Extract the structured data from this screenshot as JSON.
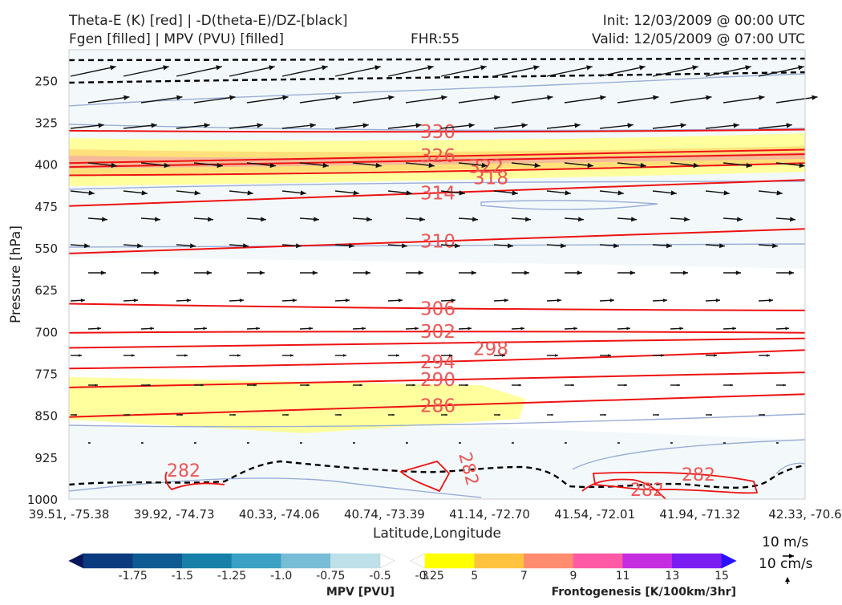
{
  "header": {
    "left_line1": "Theta-E (K) [red] | -D(theta-E)/DZ-[black]",
    "left_line2": "Fgen [filled] | MPV (PVU) [filled]",
    "center": "FHR:55",
    "init": "Init: 12/03/2009 @ 00:00 UTC",
    "valid": "Valid: 12/05/2009 @ 07:00 UTC"
  },
  "chart_data": {
    "type": "cross-section",
    "xlabel": "Latitude,Longitude",
    "ylabel": "Pressure [hPa]",
    "ylim": [
      1000,
      195
    ],
    "y_ticks": [
      250,
      325,
      400,
      475,
      550,
      625,
      700,
      775,
      850,
      925,
      1000
    ],
    "x_ticks": [
      "39.51, -75.38",
      "39.92, -74.73",
      "40.33, -74.06",
      "40.74, -73.39",
      "41.14, -72.70",
      "41.54, -72.01",
      "41.94, -71.32",
      "42.33, -70.6"
    ],
    "theta_e": {
      "color": "#ee1111",
      "levels": [
        {
          "value": 330,
          "label": "330",
          "p_left": 340,
          "p_right": 338
        },
        {
          "value": 326,
          "label": "326",
          "p_left": 398,
          "p_right": 374
        },
        {
          "value": 322,
          "label": "322",
          "p_left": 405,
          "p_right": 382
        },
        {
          "value": 318,
          "label": "318",
          "p_left": 420,
          "p_right": 398
        },
        {
          "value": 314,
          "label": "314",
          "p_left": 475,
          "p_right": 428
        },
        {
          "value": 310,
          "label": "310",
          "p_left": 560,
          "p_right": 516
        },
        {
          "value": 306,
          "label": "306",
          "p_left": 650,
          "p_right": 662
        },
        {
          "value": 302,
          "label": "302",
          "p_left": 702,
          "p_right": 702
        },
        {
          "value": 298,
          "label": "298",
          "p_left": 729,
          "p_right": 712
        },
        {
          "value": 294,
          "label": "294",
          "p_left": 766,
          "p_right": 733
        },
        {
          "value": 290,
          "label": "290",
          "p_left": 800,
          "p_right": 773
        },
        {
          "value": 286,
          "label": "286",
          "p_left": 853,
          "p_right": 812
        }
      ],
      "low_labels": [
        "282",
        "282",
        "282",
        "282"
      ]
    },
    "fgen_colorbar": {
      "label": "Frontogenesis [K/100km/3hr]",
      "ticks": [
        "3",
        "5",
        "7",
        "9",
        "11",
        "13",
        "15"
      ],
      "colors": [
        "#ffffff",
        "#ffff00",
        "#ffc340",
        "#ff8c6e",
        "#ff5aa6",
        "#c42ee0",
        "#7a1cf2",
        "#2a10ff"
      ]
    },
    "mpv_colorbar": {
      "label": "MPV [PVU]",
      "ticks": [
        "-1.75",
        "-1.5",
        "-1.25",
        "-1.0",
        "-0.75",
        "-0.5",
        "-0.25"
      ],
      "colors": [
        "#08175c",
        "#0c3a7e",
        "#0e5a93",
        "#1680a8",
        "#3aa0c4",
        "#78bdd6",
        "#bde0e9",
        "#ffffff"
      ]
    },
    "vector_key": {
      "horizontal": "10 m/s",
      "vertical": "10 cm/s"
    }
  }
}
